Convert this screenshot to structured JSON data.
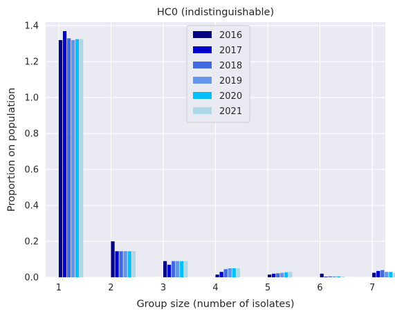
{
  "chart_data": {
    "type": "bar",
    "title": "HC0 (indistinguishable)",
    "xlabel": "Group size (number of isolates)",
    "ylabel": "Proportion on population",
    "xlim": [
      0.75,
      7.25
    ],
    "ylim": [
      0,
      1.42
    ],
    "xticks": [
      1,
      2,
      3,
      4,
      5,
      6,
      7
    ],
    "yticks": [
      0.0,
      0.2,
      0.4,
      0.6,
      0.8,
      1.0,
      1.2,
      1.4
    ],
    "ytick_labels": [
      "0.0",
      "0.2",
      "0.4",
      "0.6",
      "0.8",
      "1.0",
      "1.2",
      "1.4"
    ],
    "grid": true,
    "background": "#eaeaf2",
    "legend_position": "top-center",
    "bar_group_width": 0.48,
    "categories": [
      1,
      2,
      3,
      4,
      5,
      6,
      7
    ],
    "series": [
      {
        "name": "2016",
        "color": "#000080",
        "values": [
          1.32,
          0.2,
          0.09,
          0.015,
          0.015,
          0.02,
          0.025
        ]
      },
      {
        "name": "2017",
        "color": "#0000cd",
        "values": [
          1.37,
          0.145,
          0.07,
          0.03,
          0.02,
          0.003,
          0.035
        ]
      },
      {
        "name": "2018",
        "color": "#4169e1",
        "values": [
          1.33,
          0.145,
          0.09,
          0.045,
          0.022,
          0.005,
          0.04
        ]
      },
      {
        "name": "2019",
        "color": "#6495ed",
        "values": [
          1.32,
          0.145,
          0.09,
          0.05,
          0.025,
          0.005,
          0.03
        ]
      },
      {
        "name": "2020",
        "color": "#00bfff",
        "values": [
          1.325,
          0.145,
          0.09,
          0.05,
          0.028,
          0.005,
          0.03
        ]
      },
      {
        "name": "2021",
        "color": "#add8e6",
        "values": [
          1.325,
          0.145,
          0.09,
          0.05,
          0.03,
          0.005,
          0.025
        ]
      }
    ]
  }
}
